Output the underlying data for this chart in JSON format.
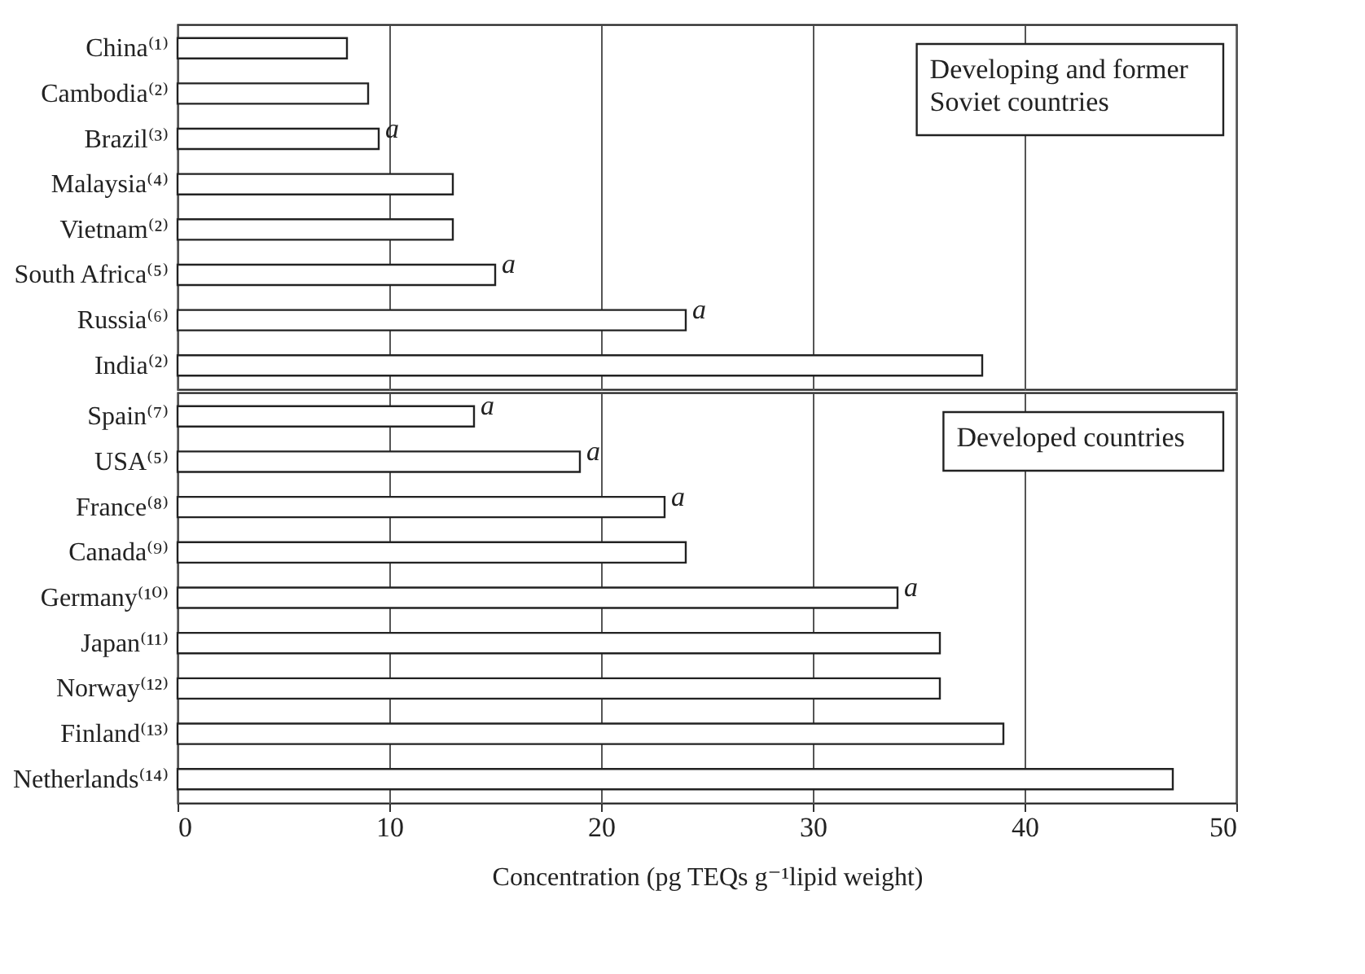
{
  "chart_data": [
    {
      "type": "bar",
      "orientation": "horizontal",
      "categories": [
        "China⁽¹⁾",
        "Cambodia⁽²⁾",
        "Brazil⁽³⁾",
        "Malaysia⁽⁴⁾",
        "Vietnam⁽²⁾",
        "South Africa⁽⁵⁾",
        "Russia⁽⁶⁾",
        "India⁽²⁾"
      ],
      "values": [
        8,
        9,
        9.5,
        13,
        13,
        15,
        24,
        38
      ],
      "color": "#ffffff",
      "value_labels": [
        null,
        null,
        "a",
        null,
        null,
        "a",
        "a",
        null
      ],
      "xlim": [
        0,
        50
      ],
      "xticks": [
        0,
        10,
        20,
        30,
        40,
        50
      ],
      "grid": "x",
      "tick_labels": "y",
      "annotations": [
        "Developing and former Soviet countries"
      ]
    },
    {
      "type": "bar",
      "orientation": "horizontal",
      "categories": [
        "Spain⁽⁷⁾",
        "USA⁽⁵⁾",
        "France⁽⁸⁾",
        "Canada⁽⁹⁾",
        "Germany⁽¹⁰⁾",
        "Japan⁽¹¹⁾",
        "Norway⁽¹²⁾",
        "Finland⁽¹³⁾",
        "Netherlands⁽¹⁴⁾"
      ],
      "values": [
        14,
        19,
        23,
        24,
        34,
        36,
        36,
        39,
        47
      ],
      "color": "#ffffff",
      "value_labels": [
        "a",
        "a",
        "a",
        null,
        "a",
        null,
        null,
        null,
        null
      ],
      "xlim": [
        0,
        50
      ],
      "xticks": [
        0,
        10,
        20,
        30,
        40,
        50
      ],
      "grid": "x",
      "xlabel": "Concentration (pg TEQs g⁻¹lipid weight)",
      "annotations": [
        "Developed countries"
      ]
    }
  ]
}
